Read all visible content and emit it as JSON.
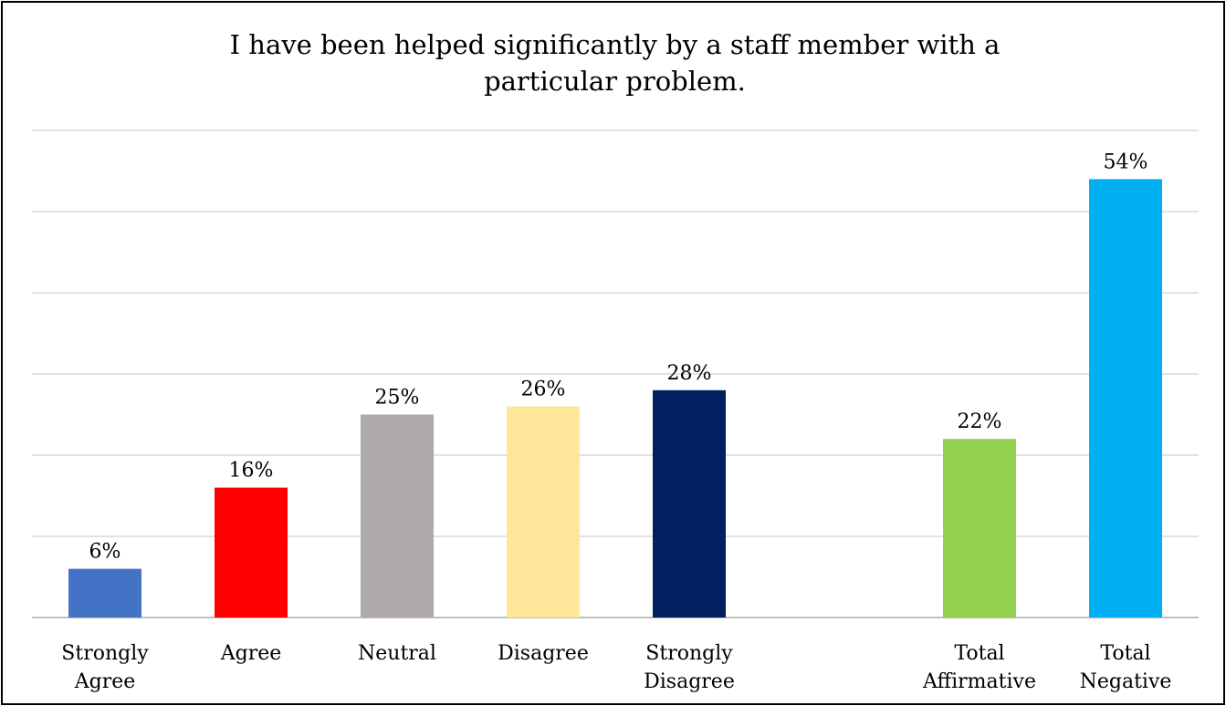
{
  "chart_data": {
    "type": "bar",
    "title_lines": [
      "I have been helped significantly by a staff member with a",
      "particular problem."
    ],
    "categories": [
      [
        "Strongly",
        "Agree"
      ],
      [
        "Agree"
      ],
      [
        "Neutral"
      ],
      [
        "Disagree"
      ],
      [
        "Strongly",
        "Disagree"
      ],
      [
        "Total",
        "Affirmative"
      ],
      [
        "Total",
        "Negative"
      ]
    ],
    "values": [
      6,
      16,
      25,
      26,
      28,
      22,
      54
    ],
    "value_labels": [
      "6%",
      "16%",
      "25%",
      "26%",
      "28%",
      "22%",
      "54%"
    ],
    "colors": [
      "#4472C4",
      "#FF0000",
      "#AEAAAA",
      "#FFE699",
      "#002060",
      "#92D050",
      "#00B0F0"
    ],
    "ylim": [
      0,
      60
    ],
    "gridline_step": 10,
    "grid": true,
    "legend": "none",
    "xlabel": "",
    "ylabel": ""
  }
}
